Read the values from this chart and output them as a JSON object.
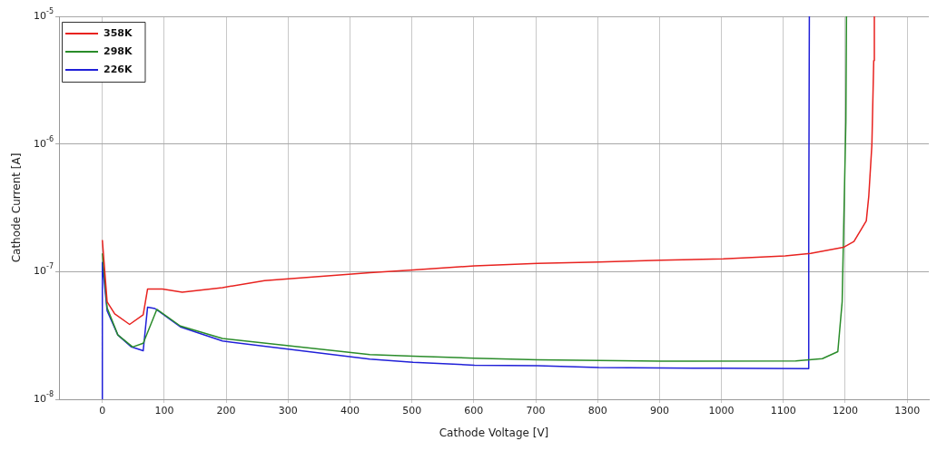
{
  "chart_data": {
    "type": "line",
    "xlabel": "Cathode Voltage [V]",
    "ylabel": "Cathode Current [A]",
    "xlim": [
      -70,
      1335
    ],
    "xticks": [
      0,
      100,
      200,
      300,
      400,
      500,
      600,
      700,
      800,
      900,
      1000,
      1100,
      1200,
      1300
    ],
    "ylim": [
      1e-08,
      1e-05
    ],
    "yticks": [
      {
        "value": 1e-08,
        "label": "10$^{-8}$"
      },
      {
        "value": 1e-07,
        "label": "10$^{-7}$"
      },
      {
        "value": 1e-06,
        "label": "10$^{-6}$"
      },
      {
        "value": 1e-05,
        "label": "10$^{-5}$"
      }
    ],
    "log": "y",
    "grid": true,
    "legend": "top left",
    "marker": "none",
    "line_style": "solid",
    "series": [
      {
        "name": "358K",
        "color": "#e8221f",
        "x": [
          0,
          7.7,
          20,
          44,
          66,
          73,
          97,
          129,
          194,
          262,
          432,
          502,
          601,
          703,
          802,
          902,
          1003,
          1103,
          1144,
          1197,
          1214,
          1234,
          1238,
          1243,
          1246,
          1247
        ],
        "values": [
          1.77e-07,
          5.8e-08,
          4.67e-08,
          3.86e-08,
          4.6e-08,
          7.3e-08,
          7.3e-08,
          6.9e-08,
          7.5e-08,
          8.5e-08,
          9.8e-08,
          1.03e-07,
          1.11e-07,
          1.16e-07,
          1.19e-07,
          1.23e-07,
          1.26e-07,
          1.33e-07,
          1.39e-07,
          1.55e-07,
          1.72e-07,
          2.5e-07,
          3.9e-07,
          9.8e-07,
          4.5e-06,
          1e-05
        ]
      },
      {
        "name": "298K",
        "color": "#2a8c2a",
        "x": [
          0,
          7.7,
          25,
          49,
          66,
          88,
          126,
          194,
          432,
          502,
          601,
          703,
          902,
          1120,
          1163,
          1188,
          1195,
          1198,
          1201,
          1202
        ],
        "values": [
          1.39e-07,
          5.2e-08,
          3.19e-08,
          2.57e-08,
          2.75e-08,
          5.06e-08,
          3.75e-08,
          2.99e-08,
          2.24e-08,
          2.18e-08,
          2.1e-08,
          2.04e-08,
          1.99e-08,
          2e-08,
          2.08e-08,
          2.36e-08,
          5.8e-08,
          2.97e-07,
          1.5e-06,
          1e-05
        ]
      },
      {
        "name": "226K",
        "color": "#2020d8",
        "x": [
          0,
          0,
          7.7,
          25,
          47,
          66,
          73,
          85,
          126,
          194,
          432,
          502,
          601,
          703,
          802,
          902,
          993,
          1140,
          1141,
          1142
        ],
        "values": [
          1e-08,
          1.18e-07,
          4.93e-08,
          3.19e-08,
          2.57e-08,
          2.4e-08,
          5.26e-08,
          5.14e-08,
          3.69e-08,
          2.86e-08,
          2.06e-08,
          1.95e-08,
          1.85e-08,
          1.83e-08,
          1.77e-08,
          1.76e-08,
          1.75e-08,
          1.74e-08,
          1.72e-07,
          1e-05
        ]
      }
    ]
  }
}
